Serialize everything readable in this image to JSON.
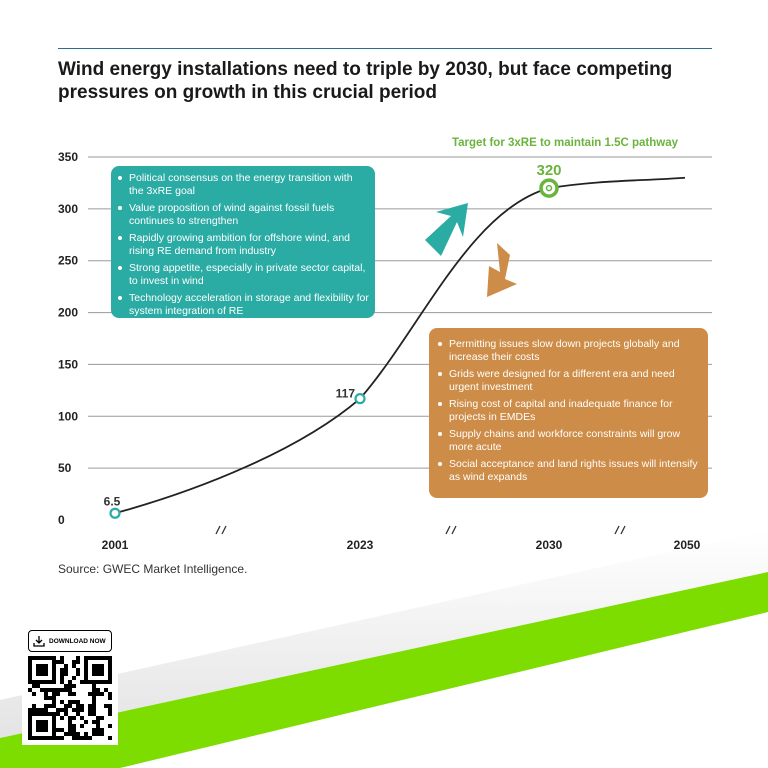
{
  "title": "Wind energy installations need to triple by 2030, but face competing pressures on growth in this crucial period",
  "source": "Source: GWEC Market Intelligence.",
  "download_label": "DOWNLOAD NOW",
  "colors": {
    "teal": "#2aaba4",
    "orange": "#cd8c47",
    "green": "#6ab43e",
    "band": "#7ddc00"
  },
  "drivers": [
    "Political consensus on the energy transition with the 3xRE goal",
    "Value proposition of wind against fossil fuels continues to strengthen",
    "Rapidly growing ambition for offshore wind, and rising RE demand from industry",
    "Strong appetite, especially in private sector capital, to invest in wind",
    "Technology acceleration in storage and flexibility for system integration of RE"
  ],
  "barriers": [
    "Permitting issues slow down projects globally and increase their costs",
    "Grids were designed for a different era and need urgent investment",
    "Rising cost of capital and inadequate finance for projects in EMDEs",
    "Supply chains and workforce constraints will grow more acute",
    "Social acceptance and land rights issues will intensify as wind expands"
  ],
  "chart_data": {
    "type": "line",
    "title": "Wind energy installations need to triple by 2030, but face competing pressures on growth in this crucial period",
    "xlabel": "",
    "ylabel": "",
    "ylim": [
      0,
      350
    ],
    "yticks": [
      0,
      50,
      100,
      150,
      200,
      250,
      300,
      350
    ],
    "xticks": [
      "2001",
      "2023",
      "2030",
      "2050"
    ],
    "grid": true,
    "annotation": "Target for 3xRE to maintain 1.5C pathway",
    "series": [
      {
        "name": "Wind installations",
        "points": [
          {
            "x": "2001",
            "y": 6.5,
            "label": "6.5"
          },
          {
            "x": "2023",
            "y": 117,
            "label": "117"
          },
          {
            "x": "2030",
            "y": 320,
            "label": "320"
          },
          {
            "x": "2050",
            "y": 330
          }
        ]
      }
    ]
  }
}
